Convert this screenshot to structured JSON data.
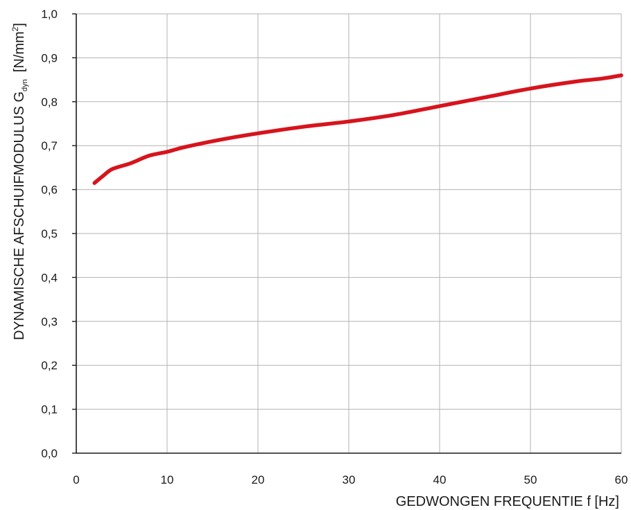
{
  "chart_data": {
    "type": "line",
    "xlabel": "GEDWONGEN FREQUENTIE f [Hz]",
    "ylabel": {
      "main": "DYNAMISCHE AFSCHUIFMODULUS G",
      "subscript": "dyn",
      "unit_before_exp": "[N/mm",
      "unit_exp": "2",
      "unit_after_exp": "]"
    },
    "xlim": [
      0,
      60
    ],
    "ylim": [
      0,
      1.0
    ],
    "x_ticks": [
      0,
      10,
      20,
      30,
      40,
      50,
      60
    ],
    "x_tick_labels": [
      "0",
      "10",
      "20",
      "30",
      "40",
      "50",
      "60"
    ],
    "y_ticks": [
      0,
      0.1,
      0.2,
      0.3,
      0.4,
      0.5,
      0.6,
      0.7,
      0.8,
      0.9,
      1.0
    ],
    "y_tick_labels": [
      "0,0",
      "0,1",
      "0,2",
      "0,3",
      "0,4",
      "0,5",
      "0,6",
      "0,7",
      "0,8",
      "0,9",
      "1,0"
    ],
    "grid": true,
    "series": [
      {
        "color": "#d7141d",
        "x": [
          2,
          3,
          4,
          6,
          8,
          10,
          12,
          16,
          20,
          25,
          30,
          35,
          40,
          45,
          50,
          55,
          58,
          60
        ],
        "y": [
          0.615,
          0.632,
          0.647,
          0.66,
          0.677,
          0.686,
          0.697,
          0.714,
          0.728,
          0.743,
          0.755,
          0.77,
          0.79,
          0.81,
          0.83,
          0.846,
          0.853,
          0.86
        ]
      }
    ]
  }
}
